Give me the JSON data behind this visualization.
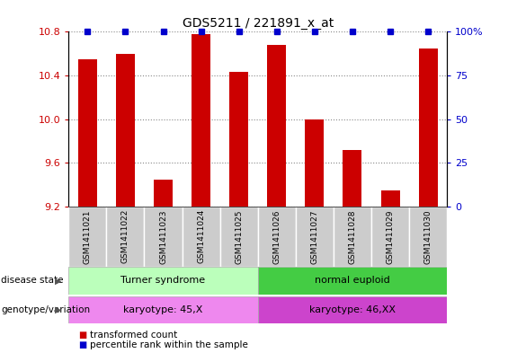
{
  "title": "GDS5211 / 221891_x_at",
  "samples": [
    "GSM1411021",
    "GSM1411022",
    "GSM1411023",
    "GSM1411024",
    "GSM1411025",
    "GSM1411026",
    "GSM1411027",
    "GSM1411028",
    "GSM1411029",
    "GSM1411030"
  ],
  "transformed_counts": [
    10.55,
    10.6,
    9.45,
    10.78,
    10.43,
    10.68,
    10.0,
    9.72,
    9.35,
    10.65
  ],
  "ylim_left": [
    9.2,
    10.8
  ],
  "ylim_right": [
    0,
    100
  ],
  "yticks_left": [
    9.2,
    9.6,
    10.0,
    10.4,
    10.8
  ],
  "yticks_right": [
    0,
    25,
    50,
    75,
    100
  ],
  "bar_color": "#cc0000",
  "dot_color": "#0000cc",
  "bar_width": 0.5,
  "disease_state_labels": [
    "Turner syndrome",
    "normal euploid"
  ],
  "disease_state_color_light": "#bbffbb",
  "disease_state_color_dark": "#44cc44",
  "genotype_labels": [
    "karyotype: 45,X",
    "karyotype: 46,XX"
  ],
  "genotype_color_light": "#ee88ee",
  "genotype_color_dark": "#cc44cc",
  "legend_label_bar": "transformed count",
  "legend_label_dot": "percentile rank within the sample",
  "grid_color": "#888888",
  "sample_bg_color": "#cccccc",
  "title_fontsize": 10,
  "tick_fontsize": 8,
  "annot_fontsize": 8
}
